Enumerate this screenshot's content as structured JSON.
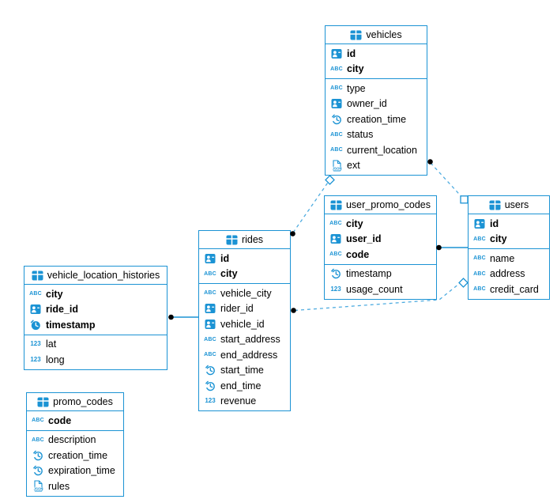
{
  "app": {
    "background": "#ffffff",
    "accent_color": "#1b93d4",
    "dashed_line_color": "#4face0",
    "dot_color": "#000000"
  },
  "tables": [
    {
      "id": "vehicles",
      "name": "vehicles",
      "primary_fields": [
        {
          "name": "id",
          "type": "id"
        },
        {
          "name": "city",
          "type": "text"
        }
      ],
      "fields": [
        {
          "name": "type",
          "type": "text"
        },
        {
          "name": "owner_id",
          "type": "id"
        },
        {
          "name": "creation_time",
          "type": "time"
        },
        {
          "name": "status",
          "type": "text"
        },
        {
          "name": "current_location",
          "type": "text"
        },
        {
          "name": "ext",
          "type": "json"
        }
      ]
    },
    {
      "id": "user_promo_codes",
      "name": "user_promo_codes",
      "primary_fields": [
        {
          "name": "city",
          "type": "text"
        },
        {
          "name": "user_id",
          "type": "id"
        },
        {
          "name": "code",
          "type": "text"
        }
      ],
      "fields": [
        {
          "name": "timestamp",
          "type": "time"
        },
        {
          "name": "usage_count",
          "type": "number"
        }
      ]
    },
    {
      "id": "users",
      "name": "users",
      "primary_fields": [
        {
          "name": "id",
          "type": "id"
        },
        {
          "name": "city",
          "type": "text"
        }
      ],
      "fields": [
        {
          "name": "name",
          "type": "text"
        },
        {
          "name": "address",
          "type": "text"
        },
        {
          "name": "credit_card",
          "type": "text"
        }
      ]
    },
    {
      "id": "rides",
      "name": "rides",
      "primary_fields": [
        {
          "name": "id",
          "type": "id"
        },
        {
          "name": "city",
          "type": "text"
        }
      ],
      "fields": [
        {
          "name": "vehicle_city",
          "type": "text"
        },
        {
          "name": "rider_id",
          "type": "id"
        },
        {
          "name": "vehicle_id",
          "type": "id"
        },
        {
          "name": "start_address",
          "type": "text"
        },
        {
          "name": "end_address",
          "type": "text"
        },
        {
          "name": "start_time",
          "type": "time"
        },
        {
          "name": "end_time",
          "type": "time"
        },
        {
          "name": "revenue",
          "type": "number"
        }
      ]
    },
    {
      "id": "vehicle_location_histories",
      "name": "vehicle_location_histories",
      "primary_fields": [
        {
          "name": "city",
          "type": "text"
        },
        {
          "name": "ride_id",
          "type": "id"
        },
        {
          "name": "timestamp",
          "type": "time"
        }
      ],
      "fields": [
        {
          "name": "lat",
          "type": "number"
        },
        {
          "name": "long",
          "type": "number"
        }
      ]
    },
    {
      "id": "promo_codes",
      "name": "promo_codes",
      "primary_fields": [
        {
          "name": "code",
          "type": "text"
        }
      ],
      "fields": [
        {
          "name": "description",
          "type": "text"
        },
        {
          "name": "creation_time",
          "type": "time"
        },
        {
          "name": "expiration_time",
          "type": "time"
        },
        {
          "name": "rules",
          "type": "json"
        }
      ]
    }
  ],
  "icon_types": {
    "table": "table-grid-icon",
    "id": "id-badge-icon",
    "text": "abc-text-icon",
    "time": "clock-icon",
    "number": "numeric-123-icon",
    "json": "json-document-icon"
  },
  "icon_glyphs": {
    "text": "ABC",
    "number": "123",
    "json_label": "JSON"
  },
  "relationships": [
    {
      "between": [
        "vehicles",
        "users"
      ],
      "style": "dashed"
    },
    {
      "between": [
        "rides",
        "vehicles"
      ],
      "style": "dashed"
    },
    {
      "between": [
        "user_promo_codes",
        "users"
      ],
      "style": "solid"
    },
    {
      "between": [
        "rides",
        "users"
      ],
      "style": "dashed"
    },
    {
      "between": [
        "vehicle_location_histories",
        "rides"
      ],
      "style": "solid"
    }
  ]
}
